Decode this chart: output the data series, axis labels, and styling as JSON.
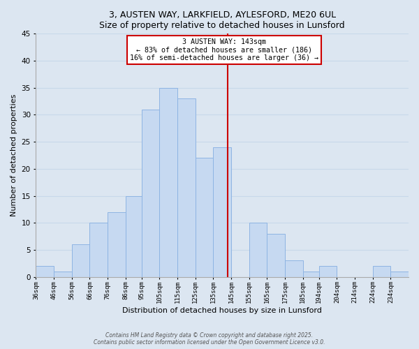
{
  "title1": "3, AUSTEN WAY, LARKFIELD, AYLESFORD, ME20 6UL",
  "title2": "Size of property relative to detached houses in Lunsford",
  "xlabel": "Distribution of detached houses by size in Lunsford",
  "ylabel": "Number of detached properties",
  "footer1": "Contains HM Land Registry data © Crown copyright and database right 2025.",
  "footer2": "Contains public sector information licensed under the Open Government Licence v3.0.",
  "bin_labels": [
    "36sqm",
    "46sqm",
    "56sqm",
    "66sqm",
    "76sqm",
    "86sqm",
    "95sqm",
    "105sqm",
    "115sqm",
    "125sqm",
    "135sqm",
    "145sqm",
    "155sqm",
    "165sqm",
    "175sqm",
    "185sqm",
    "194sqm",
    "204sqm",
    "214sqm",
    "224sqm",
    "234sqm"
  ],
  "bin_edges": [
    36,
    46,
    56,
    66,
    76,
    86,
    95,
    105,
    115,
    125,
    135,
    145,
    155,
    165,
    175,
    185,
    194,
    204,
    214,
    224,
    234,
    244
  ],
  "counts": [
    2,
    1,
    6,
    10,
    12,
    15,
    31,
    35,
    33,
    22,
    24,
    0,
    10,
    8,
    3,
    1,
    2,
    0,
    0,
    2,
    1
  ],
  "bar_color": "#c6d9f1",
  "bar_edge_color": "#8eb4e3",
  "grid_color": "#c8d8ea",
  "bg_color": "#dce6f1",
  "vline_x": 143,
  "vline_color": "#cc0000",
  "annotation_box_title": "3 AUSTEN WAY: 143sqm",
  "annotation_line1": "← 83% of detached houses are smaller (186)",
  "annotation_line2": "16% of semi-detached houses are larger (36) →",
  "annotation_box_color": "#ffffff",
  "annotation_box_edge": "#cc0000",
  "ylim": [
    0,
    45
  ],
  "yticks": [
    0,
    5,
    10,
    15,
    20,
    25,
    30,
    35,
    40,
    45
  ]
}
